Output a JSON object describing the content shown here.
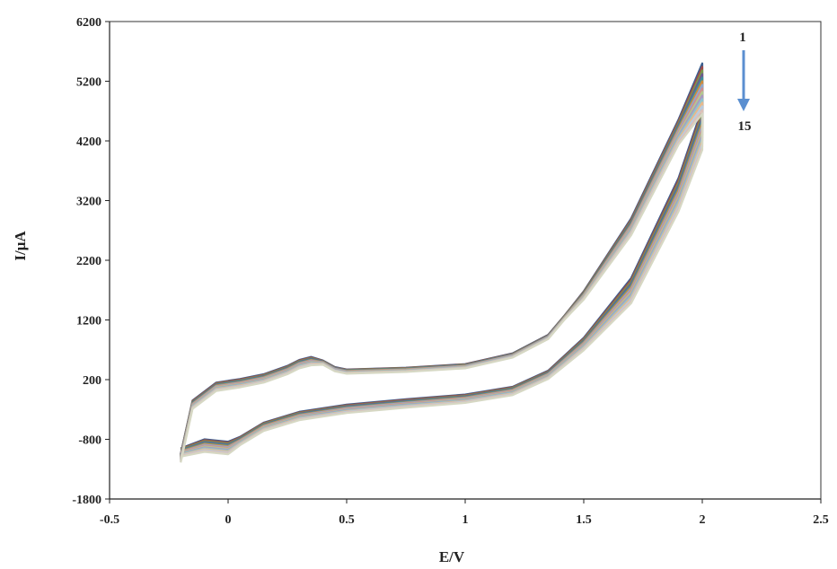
{
  "chart_data": {
    "type": "line",
    "xlabel": "E/V",
    "ylabel": "I/μA",
    "xlim": [
      -0.5,
      2.5
    ],
    "ylim": [
      -1800,
      6200
    ],
    "xticks": [
      "-0.5",
      "0",
      "0.5",
      "1",
      "1.5",
      "2",
      "2.5"
    ],
    "xtick_values": [
      -0.5,
      0,
      0.5,
      1,
      1.5,
      2,
      2.5
    ],
    "yticks": [
      "-1800",
      "-800",
      "200",
      "1200",
      "2200",
      "3200",
      "4200",
      "5200",
      "6200"
    ],
    "ytick_values": [
      -1800,
      -800,
      200,
      1200,
      2200,
      3200,
      4200,
      5200,
      6200
    ],
    "grid": false,
    "legend": "none",
    "series_count": 15,
    "annotations": {
      "first_cycle_label": "1",
      "last_cycle_label": "15",
      "arrow_direction": "down",
      "arrow_color": "#5b8fd0"
    },
    "series": [
      {
        "x": [
          -0.2,
          -0.15,
          -0.05,
          0.0,
          0.05,
          0.15,
          0.25,
          0.3,
          0.35,
          0.4,
          0.45,
          0.5,
          0.75,
          1.0,
          1.2,
          1.35,
          1.42,
          1.5,
          1.7,
          1.9,
          2.0,
          2.0,
          1.9,
          1.7,
          1.5,
          1.35,
          1.2,
          1.0,
          0.75,
          0.5,
          0.3,
          0.15,
          0.05,
          0.0,
          -0.1,
          -0.2
        ],
        "y": [
          -1050,
          -150,
          150,
          180,
          210,
          290,
          430,
          530,
          580,
          520,
          410,
          370,
          400,
          460,
          640,
          950,
          1280,
          1680,
          2900,
          4560,
          5500,
          4750,
          3580,
          1900,
          900,
          350,
          80,
          -50,
          -130,
          -220,
          -340,
          -520,
          -760,
          -840,
          -800,
          -950
        ],
        "color": "#3b5f8f"
      },
      {
        "x": [
          -0.2,
          -0.15,
          -0.05,
          0.0,
          0.05,
          0.15,
          0.25,
          0.3,
          0.35,
          0.4,
          0.45,
          0.5,
          0.75,
          1.0,
          1.2,
          1.35,
          1.42,
          1.5,
          1.7,
          1.9,
          2.0,
          2.0,
          1.9,
          1.7,
          1.5,
          1.35,
          1.2,
          1.0,
          0.75,
          0.5,
          0.3,
          0.15,
          0.05,
          0.0,
          -0.1,
          -0.2
        ],
        "y": [
          -1060,
          -160,
          140,
          170,
          200,
          280,
          420,
          520,
          570,
          515,
          405,
          365,
          395,
          455,
          635,
          945,
          1275,
          1670,
          2880,
          4530,
          5440,
          4700,
          3540,
          1870,
          885,
          340,
          70,
          -60,
          -140,
          -230,
          -350,
          -530,
          -770,
          -855,
          -815,
          -960
        ],
        "color": "#a04a4a"
      },
      {
        "x": [
          -0.2,
          -0.15,
          -0.05,
          0.0,
          0.05,
          0.15,
          0.25,
          0.3,
          0.35,
          0.4,
          0.45,
          0.5,
          0.75,
          1.0,
          1.2,
          1.35,
          1.42,
          1.5,
          1.7,
          1.9,
          2.0,
          2.0,
          1.9,
          1.7,
          1.5,
          1.35,
          1.2,
          1.0,
          0.75,
          0.5,
          0.3,
          0.15,
          0.05,
          0.0,
          -0.1,
          -0.2
        ],
        "y": [
          -1070,
          -170,
          130,
          160,
          190,
          270,
          410,
          510,
          560,
          510,
          400,
          360,
          390,
          450,
          630,
          940,
          1270,
          1660,
          2860,
          4500,
          5380,
          4650,
          3500,
          1840,
          870,
          330,
          60,
          -70,
          -150,
          -240,
          -360,
          -540,
          -780,
          -870,
          -830,
          -970
        ],
        "color": "#7a9a4a"
      },
      {
        "x": [
          -0.2,
          -0.15,
          -0.05,
          0.0,
          0.05,
          0.15,
          0.25,
          0.3,
          0.35,
          0.4,
          0.45,
          0.5,
          0.75,
          1.0,
          1.2,
          1.35,
          1.42,
          1.5,
          1.7,
          1.9,
          2.0,
          2.0,
          1.9,
          1.7,
          1.5,
          1.35,
          1.2,
          1.0,
          0.75,
          0.5,
          0.3,
          0.15,
          0.05,
          0.0,
          -0.1,
          -0.2
        ],
        "y": [
          -1080,
          -180,
          120,
          150,
          180,
          260,
          400,
          500,
          550,
          505,
          395,
          355,
          385,
          445,
          625,
          935,
          1265,
          1650,
          2840,
          4470,
          5320,
          4600,
          3460,
          1810,
          855,
          320,
          50,
          -80,
          -160,
          -250,
          -370,
          -550,
          -790,
          -885,
          -845,
          -980
        ],
        "color": "#6b5a8f"
      },
      {
        "x": [
          -0.2,
          -0.15,
          -0.05,
          0.0,
          0.05,
          0.15,
          0.25,
          0.3,
          0.35,
          0.4,
          0.45,
          0.5,
          0.75,
          1.0,
          1.2,
          1.35,
          1.42,
          1.5,
          1.7,
          1.9,
          2.0,
          2.0,
          1.9,
          1.7,
          1.5,
          1.35,
          1.2,
          1.0,
          0.75,
          0.5,
          0.3,
          0.15,
          0.05,
          0.0,
          -0.1,
          -0.2
        ],
        "y": [
          -1090,
          -190,
          110,
          140,
          170,
          250,
          390,
          490,
          540,
          500,
          390,
          350,
          380,
          440,
          620,
          930,
          1260,
          1640,
          2820,
          4440,
          5260,
          4550,
          3420,
          1780,
          840,
          310,
          40,
          -90,
          -170,
          -260,
          -380,
          -560,
          -800,
          -900,
          -860,
          -990
        ],
        "color": "#3f8f9a"
      },
      {
        "x": [
          -0.2,
          -0.15,
          -0.05,
          0.0,
          0.05,
          0.15,
          0.25,
          0.3,
          0.35,
          0.4,
          0.45,
          0.5,
          0.75,
          1.0,
          1.2,
          1.35,
          1.42,
          1.5,
          1.7,
          1.9,
          2.0,
          2.0,
          1.9,
          1.7,
          1.5,
          1.35,
          1.2,
          1.0,
          0.75,
          0.5,
          0.3,
          0.15,
          0.05,
          0.0,
          -0.1,
          -0.2
        ],
        "y": [
          -1100,
          -200,
          100,
          130,
          160,
          240,
          380,
          480,
          530,
          495,
          385,
          345,
          375,
          435,
          615,
          925,
          1255,
          1630,
          2800,
          4410,
          5200,
          4500,
          3380,
          1750,
          825,
          300,
          30,
          -100,
          -180,
          -270,
          -390,
          -570,
          -810,
          -915,
          -875,
          -1000
        ],
        "color": "#d08a3a"
      },
      {
        "x": [
          -0.2,
          -0.15,
          -0.05,
          0.0,
          0.05,
          0.15,
          0.25,
          0.3,
          0.35,
          0.4,
          0.45,
          0.5,
          0.75,
          1.0,
          1.2,
          1.35,
          1.42,
          1.5,
          1.7,
          1.9,
          2.0,
          2.0,
          1.9,
          1.7,
          1.5,
          1.35,
          1.2,
          1.0,
          0.75,
          0.5,
          0.3,
          0.15,
          0.05,
          0.0,
          -0.1,
          -0.2
        ],
        "y": [
          -1110,
          -210,
          90,
          120,
          150,
          230,
          370,
          470,
          520,
          490,
          380,
          340,
          370,
          430,
          610,
          920,
          1250,
          1620,
          2780,
          4380,
          5140,
          4450,
          3340,
          1720,
          810,
          290,
          20,
          -110,
          -190,
          -280,
          -400,
          -580,
          -820,
          -930,
          -890,
          -1010
        ],
        "color": "#8fa8cf"
      },
      {
        "x": [
          -0.2,
          -0.15,
          -0.05,
          0.0,
          0.05,
          0.15,
          0.25,
          0.3,
          0.35,
          0.4,
          0.45,
          0.5,
          0.75,
          1.0,
          1.2,
          1.35,
          1.42,
          1.5,
          1.7,
          1.9,
          2.0,
          2.0,
          1.9,
          1.7,
          1.5,
          1.35,
          1.2,
          1.0,
          0.75,
          0.5,
          0.3,
          0.15,
          0.05,
          0.0,
          -0.1,
          -0.2
        ],
        "y": [
          -1120,
          -220,
          80,
          110,
          140,
          220,
          360,
          460,
          510,
          485,
          375,
          335,
          365,
          425,
          605,
          915,
          1245,
          1610,
          2760,
          4350,
          5080,
          4400,
          3300,
          1690,
          795,
          280,
          10,
          -120,
          -200,
          -290,
          -410,
          -590,
          -830,
          -945,
          -905,
          -1020
        ],
        "color": "#cf8f8f"
      },
      {
        "x": [
          -0.2,
          -0.15,
          -0.05,
          0.0,
          0.05,
          0.15,
          0.25,
          0.3,
          0.35,
          0.4,
          0.45,
          0.5,
          0.75,
          1.0,
          1.2,
          1.35,
          1.42,
          1.5,
          1.7,
          1.9,
          2.0,
          2.0,
          1.9,
          1.7,
          1.5,
          1.35,
          1.2,
          1.0,
          0.75,
          0.5,
          0.3,
          0.15,
          0.05,
          0.0,
          -0.1,
          -0.2
        ],
        "y": [
          -1130,
          -230,
          70,
          100,
          130,
          210,
          350,
          450,
          500,
          480,
          370,
          330,
          360,
          420,
          600,
          910,
          1240,
          1600,
          2740,
          4320,
          5020,
          4350,
          3260,
          1660,
          780,
          270,
          0,
          -130,
          -210,
          -300,
          -420,
          -600,
          -840,
          -960,
          -920,
          -1030
        ],
        "color": "#b4c88f"
      },
      {
        "x": [
          -0.2,
          -0.15,
          -0.05,
          0.0,
          0.05,
          0.15,
          0.25,
          0.3,
          0.35,
          0.4,
          0.45,
          0.5,
          0.75,
          1.0,
          1.2,
          1.35,
          1.42,
          1.5,
          1.7,
          1.9,
          2.0,
          2.0,
          1.9,
          1.7,
          1.5,
          1.35,
          1.2,
          1.0,
          0.75,
          0.5,
          0.3,
          0.15,
          0.05,
          0.0,
          -0.1,
          -0.2
        ],
        "y": [
          -1140,
          -240,
          60,
          90,
          120,
          200,
          340,
          440,
          490,
          475,
          365,
          325,
          355,
          415,
          595,
          905,
          1235,
          1590,
          2720,
          4290,
          4960,
          4300,
          3220,
          1630,
          765,
          260,
          -10,
          -140,
          -220,
          -310,
          -430,
          -610,
          -850,
          -975,
          -935,
          -1040
        ],
        "color": "#a89ac0"
      },
      {
        "x": [
          -0.2,
          -0.15,
          -0.05,
          0.0,
          0.05,
          0.15,
          0.25,
          0.3,
          0.35,
          0.4,
          0.45,
          0.5,
          0.75,
          1.0,
          1.2,
          1.35,
          1.42,
          1.5,
          1.7,
          1.9,
          2.0,
          2.0,
          1.9,
          1.7,
          1.5,
          1.35,
          1.2,
          1.0,
          0.75,
          0.5,
          0.3,
          0.15,
          0.05,
          0.0,
          -0.1,
          -0.2
        ],
        "y": [
          -1150,
          -250,
          50,
          80,
          110,
          190,
          330,
          430,
          480,
          470,
          360,
          320,
          350,
          410,
          590,
          900,
          1230,
          1580,
          2700,
          4260,
          4900,
          4250,
          3180,
          1600,
          750,
          250,
          -20,
          -150,
          -230,
          -320,
          -440,
          -620,
          -860,
          -990,
          -950,
          -1050
        ],
        "color": "#8fc4cc"
      },
      {
        "x": [
          -0.2,
          -0.15,
          -0.05,
          0.0,
          0.05,
          0.15,
          0.25,
          0.3,
          0.35,
          0.4,
          0.45,
          0.5,
          0.75,
          1.0,
          1.2,
          1.35,
          1.42,
          1.5,
          1.7,
          1.9,
          2.0,
          2.0,
          1.9,
          1.7,
          1.5,
          1.35,
          1.2,
          1.0,
          0.75,
          0.5,
          0.3,
          0.15,
          0.05,
          0.0,
          -0.1,
          -0.2
        ],
        "y": [
          -1160,
          -260,
          40,
          70,
          100,
          180,
          320,
          420,
          470,
          465,
          355,
          315,
          345,
          405,
          585,
          895,
          1225,
          1570,
          2680,
          4230,
          4840,
          4200,
          3140,
          1570,
          735,
          240,
          -30,
          -160,
          -240,
          -330,
          -450,
          -630,
          -870,
          -1005,
          -965,
          -1060
        ],
        "color": "#e8b88a"
      },
      {
        "x": [
          -0.2,
          -0.15,
          -0.05,
          0.0,
          0.05,
          0.15,
          0.25,
          0.3,
          0.35,
          0.4,
          0.45,
          0.5,
          0.75,
          1.0,
          1.2,
          1.35,
          1.42,
          1.5,
          1.7,
          1.9,
          2.0,
          2.0,
          1.9,
          1.7,
          1.5,
          1.35,
          1.2,
          1.0,
          0.75,
          0.5,
          0.3,
          0.15,
          0.05,
          0.0,
          -0.1,
          -0.2
        ],
        "y": [
          -1170,
          -270,
          30,
          60,
          90,
          170,
          310,
          410,
          460,
          460,
          350,
          310,
          340,
          400,
          580,
          890,
          1220,
          1560,
          2660,
          4200,
          4780,
          4150,
          3100,
          1540,
          720,
          230,
          -40,
          -170,
          -250,
          -340,
          -460,
          -640,
          -880,
          -1020,
          -980,
          -1070
        ],
        "color": "#b8cce0"
      },
      {
        "x": [
          -0.2,
          -0.15,
          -0.05,
          0.0,
          0.05,
          0.15,
          0.25,
          0.3,
          0.35,
          0.4,
          0.45,
          0.5,
          0.75,
          1.0,
          1.2,
          1.35,
          1.42,
          1.5,
          1.7,
          1.9,
          2.0,
          2.0,
          1.9,
          1.7,
          1.5,
          1.35,
          1.2,
          1.0,
          0.75,
          0.5,
          0.3,
          0.15,
          0.05,
          0.0,
          -0.1,
          -0.2
        ],
        "y": [
          -1180,
          -280,
          20,
          50,
          80,
          160,
          300,
          400,
          450,
          455,
          345,
          305,
          335,
          395,
          575,
          885,
          1215,
          1550,
          2640,
          4170,
          4720,
          4100,
          3060,
          1510,
          705,
          220,
          -50,
          -180,
          -260,
          -350,
          -470,
          -650,
          -890,
          -1035,
          -995,
          -1080
        ],
        "color": "#dcc0b8"
      },
      {
        "x": [
          -0.2,
          -0.15,
          -0.05,
          0.0,
          0.05,
          0.15,
          0.25,
          0.3,
          0.35,
          0.4,
          0.45,
          0.5,
          0.75,
          1.0,
          1.2,
          1.35,
          1.42,
          1.5,
          1.7,
          1.9,
          2.0,
          2.0,
          1.9,
          1.7,
          1.5,
          1.35,
          1.2,
          1.0,
          0.75,
          0.5,
          0.3,
          0.15,
          0.05,
          0.0,
          -0.1,
          -0.2
        ],
        "y": [
          -1190,
          -290,
          10,
          40,
          70,
          150,
          290,
          390,
          440,
          450,
          340,
          300,
          330,
          390,
          570,
          880,
          1210,
          1540,
          2620,
          4140,
          4660,
          4050,
          3020,
          1480,
          690,
          210,
          -60,
          -190,
          -270,
          -360,
          -480,
          -660,
          -900,
          -1050,
          -1010,
          -1090
        ],
        "color": "#d6d8c4"
      }
    ]
  }
}
